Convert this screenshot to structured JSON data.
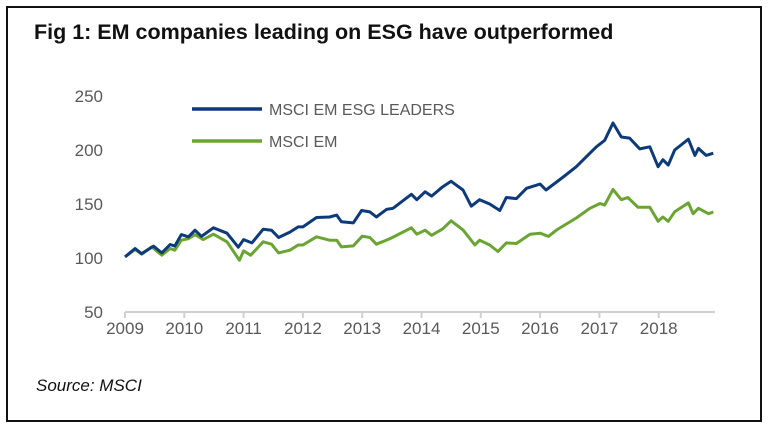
{
  "chart_data": {
    "type": "line",
    "title": "Fig 1: EM companies leading on ESG have outperformed",
    "source": "Source: MSCI",
    "xlabel": "",
    "ylabel": "",
    "xlim": [
      2009,
      2019
    ],
    "ylim": [
      50,
      250
    ],
    "x_ticks": [
      "2009",
      "2010",
      "2011",
      "2012",
      "2013",
      "2014",
      "2015",
      "2016",
      "2017",
      "2018"
    ],
    "y_ticks": [
      "50",
      "100",
      "150",
      "200",
      "250"
    ],
    "grid": false,
    "legend_placement": "top-left",
    "series": [
      {
        "name": "MSCI EM ESG LEADERS",
        "color": "#0d3a7a",
        "points": [
          [
            2009.0,
            101
          ],
          [
            2009.17,
            108.8
          ],
          [
            2009.28,
            104
          ],
          [
            2009.48,
            111
          ],
          [
            2009.62,
            104.7
          ],
          [
            2009.76,
            112.5
          ],
          [
            2009.84,
            111
          ],
          [
            2009.95,
            121.7
          ],
          [
            2010.07,
            119.6
          ],
          [
            2010.18,
            125.7
          ],
          [
            2010.29,
            120
          ],
          [
            2010.49,
            128
          ],
          [
            2010.72,
            123
          ],
          [
            2010.91,
            110
          ],
          [
            2011.0,
            117
          ],
          [
            2011.14,
            114
          ],
          [
            2011.33,
            126.7
          ],
          [
            2011.47,
            125.7
          ],
          [
            2011.59,
            119
          ],
          [
            2011.78,
            124
          ],
          [
            2011.92,
            128.8
          ],
          [
            2012.0,
            128.8
          ],
          [
            2012.23,
            137.5
          ],
          [
            2012.45,
            138
          ],
          [
            2012.57,
            139.7
          ],
          [
            2012.65,
            133.5
          ],
          [
            2012.85,
            132.5
          ],
          [
            2012.99,
            144
          ],
          [
            2013.13,
            142.7
          ],
          [
            2013.24,
            138
          ],
          [
            2013.41,
            145
          ],
          [
            2013.52,
            146
          ],
          [
            2013.83,
            159
          ],
          [
            2013.92,
            154
          ],
          [
            2014.06,
            161.3
          ],
          [
            2014.17,
            157.3
          ],
          [
            2014.36,
            166
          ],
          [
            2014.5,
            171
          ],
          [
            2014.7,
            163
          ],
          [
            2014.84,
            148
          ],
          [
            2014.98,
            154
          ],
          [
            2015.15,
            150
          ],
          [
            2015.32,
            144
          ],
          [
            2015.43,
            156
          ],
          [
            2015.6,
            155
          ],
          [
            2015.77,
            164.5
          ],
          [
            2016.0,
            168.4
          ],
          [
            2016.1,
            163
          ],
          [
            2016.39,
            175
          ],
          [
            2016.61,
            184.5
          ],
          [
            2016.84,
            197
          ],
          [
            2016.95,
            203
          ],
          [
            2017.09,
            209
          ],
          [
            2017.23,
            225
          ],
          [
            2017.37,
            212
          ],
          [
            2017.51,
            211
          ],
          [
            2017.68,
            201
          ],
          [
            2017.85,
            203
          ],
          [
            2017.99,
            184.5
          ],
          [
            2018.07,
            191
          ],
          [
            2018.16,
            186
          ],
          [
            2018.27,
            200
          ],
          [
            2018.5,
            210
          ],
          [
            2018.61,
            195
          ],
          [
            2018.67,
            201.5
          ],
          [
            2018.8,
            195
          ],
          [
            2018.92,
            197
          ]
        ]
      },
      {
        "name": "MSCI EM",
        "color": "#6aa533",
        "points": [
          [
            2009.0,
            101
          ],
          [
            2009.17,
            108
          ],
          [
            2009.28,
            103.5
          ],
          [
            2009.45,
            110.3
          ],
          [
            2009.62,
            102.6
          ],
          [
            2009.76,
            108.8
          ],
          [
            2009.84,
            107.2
          ],
          [
            2009.95,
            116.5
          ],
          [
            2010.07,
            118
          ],
          [
            2010.18,
            121.7
          ],
          [
            2010.32,
            117
          ],
          [
            2010.49,
            122
          ],
          [
            2010.72,
            115
          ],
          [
            2010.93,
            98
          ],
          [
            2011.0,
            106.6
          ],
          [
            2011.12,
            102.6
          ],
          [
            2011.33,
            115
          ],
          [
            2011.47,
            112.8
          ],
          [
            2011.59,
            104.7
          ],
          [
            2011.78,
            107.2
          ],
          [
            2011.92,
            112
          ],
          [
            2012.0,
            112
          ],
          [
            2012.23,
            119.6
          ],
          [
            2012.45,
            116.5
          ],
          [
            2012.57,
            116.5
          ],
          [
            2012.65,
            110.3
          ],
          [
            2012.85,
            111.2
          ],
          [
            2013.0,
            120.2
          ],
          [
            2013.13,
            119
          ],
          [
            2013.24,
            112.8
          ],
          [
            2013.47,
            118
          ],
          [
            2013.83,
            128
          ],
          [
            2013.92,
            122
          ],
          [
            2014.06,
            125.7
          ],
          [
            2014.17,
            121
          ],
          [
            2014.36,
            127
          ],
          [
            2014.5,
            134.4
          ],
          [
            2014.7,
            126
          ],
          [
            2014.9,
            112
          ],
          [
            2014.98,
            116.5
          ],
          [
            2015.15,
            112
          ],
          [
            2015.29,
            106
          ],
          [
            2015.43,
            114
          ],
          [
            2015.6,
            113.4
          ],
          [
            2015.83,
            122
          ],
          [
            2016.0,
            123
          ],
          [
            2016.14,
            120
          ],
          [
            2016.28,
            126
          ],
          [
            2016.61,
            137
          ],
          [
            2016.84,
            146
          ],
          [
            2017.01,
            150.5
          ],
          [
            2017.09,
            149
          ],
          [
            2017.23,
            163.5
          ],
          [
            2017.37,
            154
          ],
          [
            2017.48,
            156
          ],
          [
            2017.65,
            147
          ],
          [
            2017.85,
            147
          ],
          [
            2017.99,
            134
          ],
          [
            2018.07,
            138
          ],
          [
            2018.16,
            134
          ],
          [
            2018.27,
            142.8
          ],
          [
            2018.5,
            151
          ],
          [
            2018.58,
            141
          ],
          [
            2018.67,
            146
          ],
          [
            2018.84,
            141
          ],
          [
            2018.92,
            142.6
          ]
        ]
      }
    ]
  }
}
